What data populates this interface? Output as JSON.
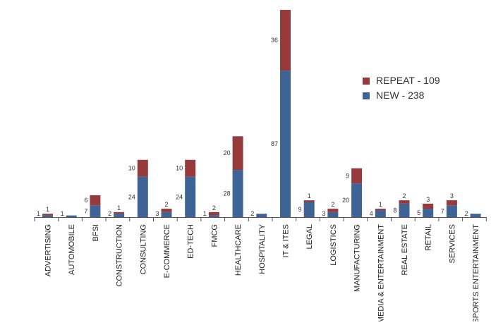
{
  "chart_data": {
    "type": "bar",
    "stacked": true,
    "categories": [
      "ADVERTISING",
      "AUTOMOBILE",
      "BFSI",
      "CONSTRUCTION",
      "CONSULTING",
      "E-COMMERCE",
      "ED-TECH",
      "FMCG",
      "HEALTHCARE",
      "HOSPITALITY",
      "IT & ITES",
      "LEGAL",
      "LOGISTICS",
      "MANUFACTURING",
      "MEDIA & ENTERTAINMENT",
      "REAL ESTATE",
      "RETAIL",
      "SERVICES",
      "SPORTS ENTERTAINMENT"
    ],
    "series": [
      {
        "name": "NEW - 238",
        "color": "#3e6496",
        "values": [
          1,
          1,
          7,
          2,
          24,
          3,
          24,
          1,
          28,
          2,
          87,
          9,
          3,
          20,
          4,
          8,
          5,
          7,
          2
        ]
      },
      {
        "name": "REPEAT - 109",
        "color": "#973a3c",
        "values": [
          1,
          0,
          6,
          1,
          10,
          2,
          10,
          2,
          20,
          0,
          36,
          1,
          2,
          9,
          1,
          2,
          3,
          3,
          0
        ]
      }
    ],
    "data_labels": {
      "new": [
        "1",
        "1",
        "7",
        "2",
        "24",
        "3",
        "24",
        "1",
        "28",
        "2",
        "87",
        "9",
        "3",
        "20",
        "4",
        "8",
        "5",
        "7",
        "2"
      ],
      "repeat": [
        "1",
        "",
        "6",
        "1",
        "10",
        "2",
        "10",
        "2",
        "20",
        "",
        "36",
        "1",
        "2",
        "9",
        "1",
        "2",
        "3",
        "3",
        ""
      ]
    },
    "legend_position": "right",
    "grid": false
  }
}
